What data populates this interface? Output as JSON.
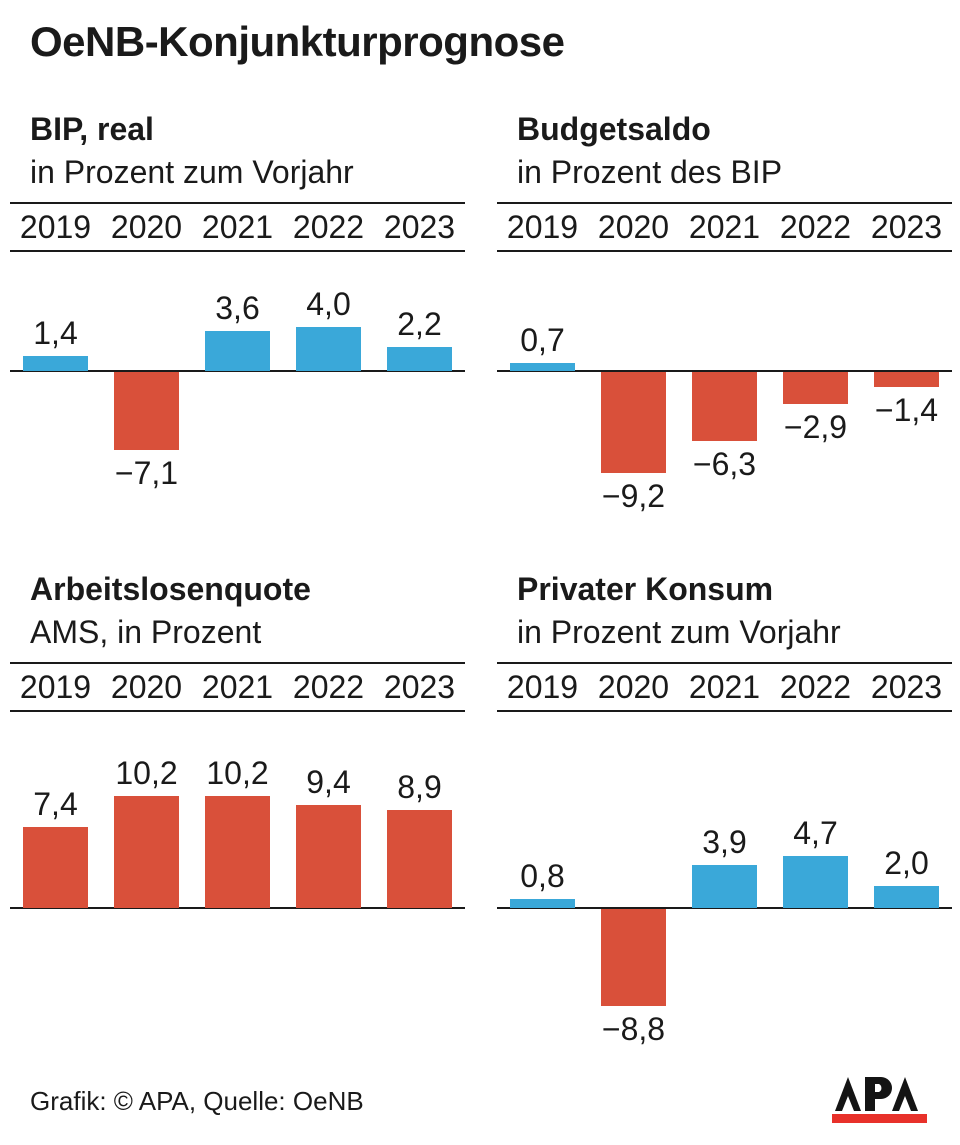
{
  "title": "OeNB-Konjunkturprognose",
  "footer": {
    "credit": "Grafik: © APA, Quelle: OeNB",
    "logo_text": "APA"
  },
  "colors": {
    "blue": "#3aa8d9",
    "red": "#d9503a",
    "ink": "#1a1a1a",
    "logo_red": "#e8312a",
    "background": "#ffffff"
  },
  "chart_data": [
    {
      "type": "bar",
      "title": "BIP, real",
      "subtitle": "in Prozent zum Vorjahr",
      "categories": [
        "2019",
        "2020",
        "2021",
        "2022",
        "2023"
      ],
      "values": [
        1.4,
        -7.1,
        3.6,
        4.0,
        2.2
      ],
      "labels": [
        "1,4",
        "−7,1",
        "3,6",
        "4,0",
        "2,2"
      ],
      "bar_colors": [
        "blue",
        "red",
        "blue",
        "blue",
        "blue"
      ],
      "ylim": [
        -9.5,
        4.5
      ],
      "grid": false,
      "legend": "none",
      "value_labels": "on"
    },
    {
      "type": "bar",
      "title": "Budgetsaldo",
      "subtitle": "in Prozent des BIP",
      "categories": [
        "2019",
        "2020",
        "2021",
        "2022",
        "2023"
      ],
      "values": [
        0.7,
        -9.2,
        -6.3,
        -2.9,
        -1.4
      ],
      "labels": [
        "0,7",
        "−9,2",
        "−6,3",
        "−2,9",
        "−1,4"
      ],
      "bar_colors": [
        "blue",
        "red",
        "red",
        "red",
        "red"
      ],
      "ylim": [
        -9.5,
        4.5
      ],
      "grid": false,
      "legend": "none",
      "value_labels": "on"
    },
    {
      "type": "bar",
      "title": "Arbeitslosenquote",
      "subtitle": "AMS, in Prozent",
      "categories": [
        "2019",
        "2020",
        "2021",
        "2022",
        "2023"
      ],
      "values": [
        7.4,
        10.2,
        10.2,
        9.4,
        8.9
      ],
      "labels": [
        "7,4",
        "10,2",
        "10,2",
        "9,4",
        "8,9"
      ],
      "bar_colors": [
        "red",
        "red",
        "red",
        "red",
        "red"
      ],
      "ylim": [
        0,
        11
      ],
      "grid": false,
      "legend": "none",
      "value_labels": "on"
    },
    {
      "type": "bar",
      "title": "Privater Konsum",
      "subtitle": "in Prozent zum Vorjahr",
      "categories": [
        "2019",
        "2020",
        "2021",
        "2022",
        "2023"
      ],
      "values": [
        0.8,
        -8.8,
        3.9,
        4.7,
        2.0
      ],
      "labels": [
        "0,8",
        "−8,8",
        "3,9",
        "4,7",
        "2,0"
      ],
      "bar_colors": [
        "blue",
        "red",
        "blue",
        "blue",
        "blue"
      ],
      "ylim": [
        -9.5,
        5
      ],
      "grid": false,
      "legend": "none",
      "value_labels": "on"
    }
  ]
}
